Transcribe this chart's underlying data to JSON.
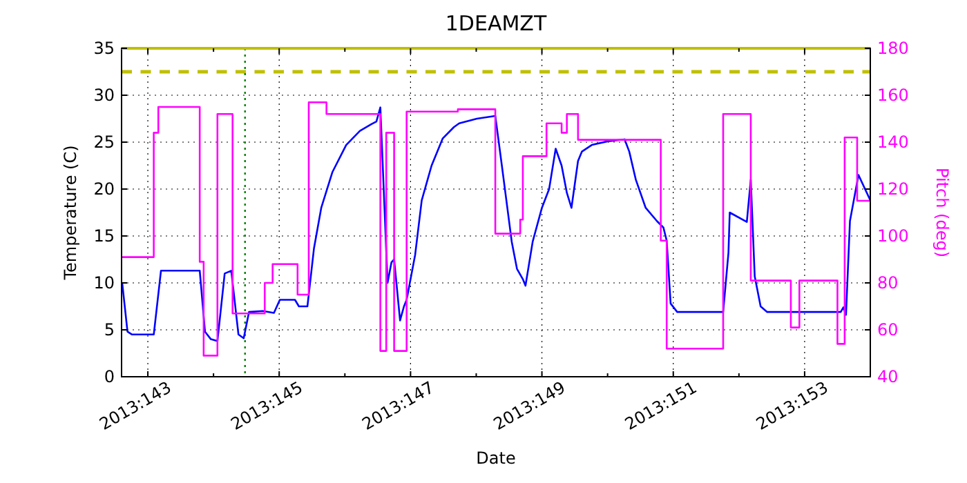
{
  "chart_data": {
    "type": "line",
    "title": "1DEAMZT",
    "xlabel": "Date",
    "ylabel": "Temperature (C)",
    "y2label": "Pitch (deg)",
    "xlim": [
      "2013-05-22T14:24",
      "2013-06-03T00:00"
    ],
    "ylim": [
      0,
      35
    ],
    "y2lim": [
      40,
      180
    ],
    "xticks": [
      {
        "value": "2013-05-23",
        "label": "2013:143"
      },
      {
        "value": "2013-05-24",
        "label": null
      },
      {
        "value": "2013-05-25",
        "label": "2013:145"
      },
      {
        "value": "2013-05-26",
        "label": null
      },
      {
        "value": "2013-05-27",
        "label": "2013:147"
      },
      {
        "value": "2013-05-28",
        "label": null
      },
      {
        "value": "2013-05-29",
        "label": "2013:149"
      },
      {
        "value": "2013-05-30",
        "label": null
      },
      {
        "value": "2013-05-31",
        "label": "2013:151"
      },
      {
        "value": "2013-06-01",
        "label": null
      },
      {
        "value": "2013-06-02",
        "label": "2013:153"
      },
      {
        "value": "2013-06-03",
        "label": null
      }
    ],
    "yticks": [
      0,
      5,
      10,
      15,
      20,
      25,
      30,
      35
    ],
    "y2ticks": [
      40,
      60,
      80,
      100,
      120,
      140,
      160,
      180
    ],
    "grid": true,
    "marker": "none",
    "line_style": "solid",
    "series": [
      {
        "type": "line",
        "color": "#0000ff",
        "x": [
          "2013-05-22T14:38",
          "2013-05-22T16:34",
          "2013-05-22T18:14",
          "2013-05-23T02:10",
          "2013-05-23T04:48",
          "2013-05-23T18:58",
          "2013-05-23T20:53",
          "2013-05-23T23:02",
          "2013-05-24T01:26",
          "2013-05-24T04:05",
          "2013-05-24T06:29",
          "2013-05-24T09:07",
          "2013-05-24T11:02",
          "2013-05-24T12:58",
          "2013-05-24T18:00",
          "2013-05-24T22:05",
          "2013-05-25T00:14",
          "2013-05-25T05:46",
          "2013-05-25T07:12",
          "2013-05-25T10:19",
          "2013-05-25T12:43",
          "2013-05-25T15:22",
          "2013-05-25T19:26",
          "2013-05-26T00:29",
          "2013-05-26T05:31",
          "2013-05-26T09:36",
          "2013-05-26T11:31",
          "2013-05-26T12:58",
          "2013-05-26T15:36",
          "2013-05-26T17:02",
          "2013-05-26T18:00",
          "2013-05-26T20:10",
          "2013-05-26T21:36",
          "2013-05-26T22:34",
          "2013-05-27T01:41",
          "2013-05-27T04:05",
          "2013-05-27T07:41",
          "2013-05-27T11:46",
          "2013-05-27T15:50",
          "2013-05-27T17:46",
          "2013-05-28T00:14",
          "2013-05-28T06:58",
          "2013-05-28T09:22",
          "2013-05-28T12:58",
          "2013-05-28T14:53",
          "2013-05-28T17:02",
          "2013-05-28T18:00",
          "2013-05-28T20:38",
          "2013-05-29T00:00",
          "2013-05-29T02:38",
          "2013-05-29T05:02",
          "2013-05-29T07:12",
          "2013-05-29T09:07",
          "2013-05-29T10:48",
          "2013-05-29T13:12",
          "2013-05-29T14:38",
          "2013-05-29T18:14",
          "2013-05-30T00:14",
          "2013-05-30T06:14",
          "2013-05-30T07:55",
          "2013-05-30T10:19",
          "2013-05-30T13:55",
          "2013-05-30T18:00",
          "2013-05-30T20:24",
          "2013-05-30T21:36",
          "2013-05-30T23:02",
          "2013-05-31T01:26",
          "2013-05-31T18:14",
          "2013-05-31T20:10",
          "2013-05-31T20:38",
          "2013-06-01T02:53",
          "2013-06-01T04:19",
          "2013-06-01T05:46",
          "2013-06-01T07:55",
          "2013-06-01T10:19",
          "2013-06-02T13:12",
          "2013-06-02T14:10",
          "2013-06-02T15:07",
          "2013-06-02T16:34",
          "2013-06-02T19:41",
          "2013-06-03T00:00"
        ],
        "values": [
          10,
          4.8,
          4.5,
          4.5,
          11.3,
          11.3,
          4.8,
          4,
          3.8,
          11,
          11.3,
          4.5,
          4.1,
          6.9,
          7,
          6.8,
          8.2,
          8.2,
          7.5,
          7.5,
          13.7,
          18,
          21.8,
          24.7,
          26.2,
          26.9,
          27.2,
          28.7,
          10,
          12.2,
          12.5,
          6,
          7.5,
          8.2,
          13,
          18.8,
          22.5,
          25.4,
          26.6,
          27,
          27.5,
          27.8,
          22.5,
          14.4,
          11.5,
          10.4,
          9.7,
          14.4,
          18,
          20,
          24.3,
          22.5,
          19.6,
          18,
          23,
          24,
          24.7,
          25.1,
          25.3,
          24,
          21,
          18,
          16.6,
          15.9,
          14.5,
          7.8,
          6.9,
          6.9,
          13.2,
          17.5,
          16.5,
          21,
          10.7,
          7.5,
          6.9,
          6.9,
          7.4,
          6.6,
          16.6,
          21.5,
          18.8
        ]
      },
      {
        "type": "step",
        "axis": "y2",
        "color": "#ff00ff",
        "x": [
          "2013-05-22T14:38",
          "2013-05-23T02:10",
          "2013-05-23T03:50",
          "2013-05-23T18:58",
          "2013-05-23T20:24",
          "2013-05-24T01:26",
          "2013-05-24T06:58",
          "2013-05-24T18:43",
          "2013-05-24T21:36",
          "2013-05-25T06:43",
          "2013-05-25T10:48",
          "2013-05-25T17:17",
          "2013-05-26T12:58",
          "2013-05-26T15:07",
          "2013-05-26T18:00",
          "2013-05-26T22:34",
          "2013-05-27T17:17",
          "2013-05-28T06:58",
          "2013-05-28T16:05",
          "2013-05-28T17:02",
          "2013-05-29T01:41",
          "2013-05-29T07:12",
          "2013-05-29T09:07",
          "2013-05-29T13:12",
          "2013-05-30T19:26",
          "2013-05-30T21:36",
          "2013-05-31T18:14",
          "2013-06-01T04:19",
          "2013-06-01T18:58",
          "2013-06-01T22:05",
          "2013-06-02T12:00",
          "2013-06-02T14:38",
          "2013-06-02T19:12",
          "2013-06-03T00:00"
        ],
        "values": [
          91,
          144,
          155,
          89,
          49,
          152,
          67,
          80,
          88,
          75,
          157,
          152,
          51,
          144,
          51,
          153,
          154,
          101,
          107,
          134,
          148,
          144,
          152,
          141,
          98,
          52,
          152,
          81,
          61,
          81,
          54,
          142,
          115,
          115
        ]
      }
    ],
    "ref_lines": [
      {
        "axis": "y",
        "value": 35,
        "color": "#bfbf00",
        "line_style": "solid"
      },
      {
        "axis": "y",
        "value": 32.5,
        "color": "#bfbf00",
        "line_style": "dashed"
      },
      {
        "axis": "x",
        "value": "2013-05-24T11:31",
        "color": "#008000",
        "line_style": "dotted"
      }
    ]
  }
}
